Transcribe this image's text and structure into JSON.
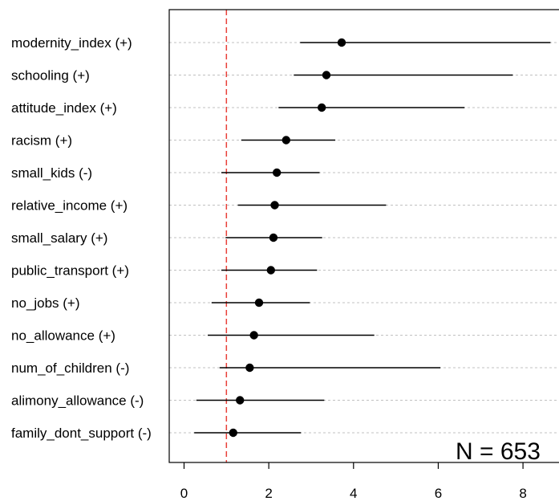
{
  "chart_data": {
    "type": "forest",
    "categories": [
      "modernity_index (+)",
      "schooling (+)",
      "attitude_index (+)",
      "racism (+)",
      "small_kids (-)",
      "relative_income (+)",
      "small_salary (+)",
      "public_transport (+)",
      "no_jobs (+)",
      "no_allowance (+)",
      "num_of_children (-)",
      "alimony_allowance (-)",
      "family_dont_support (-)"
    ],
    "estimates": [
      3.72,
      3.36,
      3.25,
      2.41,
      2.19,
      2.14,
      2.11,
      2.05,
      1.77,
      1.65,
      1.55,
      1.32,
      1.16
    ],
    "lower": [
      2.74,
      2.59,
      2.23,
      1.35,
      0.88,
      1.27,
      0.98,
      0.88,
      0.65,
      0.56,
      0.84,
      0.29,
      0.24
    ],
    "upper": [
      8.65,
      7.76,
      6.62,
      3.57,
      3.2,
      4.77,
      3.26,
      3.14,
      2.97,
      4.49,
      6.05,
      3.31,
      2.76
    ],
    "reference_line": 1,
    "xticks": [
      0,
      2,
      4,
      6,
      8
    ],
    "xlim": [
      -0.35,
      8.85
    ],
    "annotation": "N = 653",
    "grid": true,
    "colors": {
      "reference": "#e8403a",
      "grid": "#c0c0c0",
      "marks": "#000000"
    }
  }
}
